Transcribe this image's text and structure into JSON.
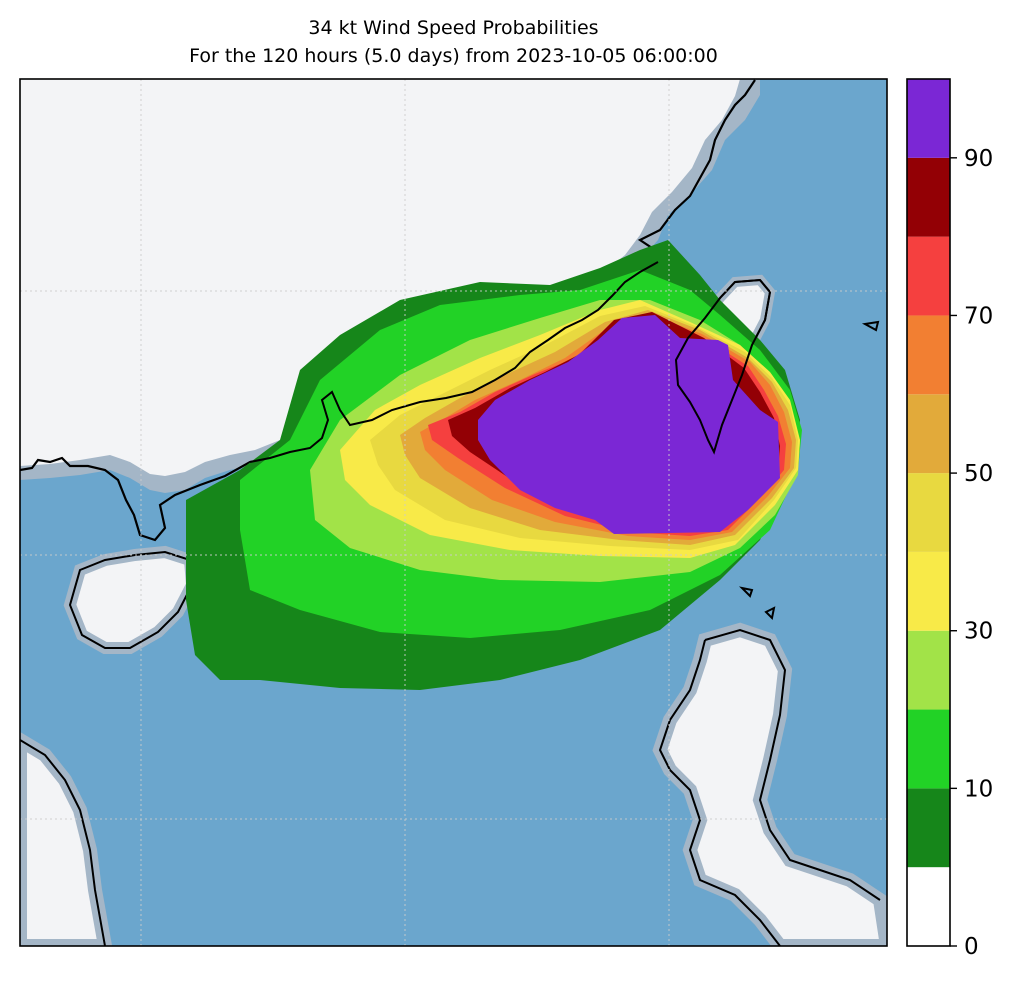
{
  "title": "34 kt Wind Speed Probabilities",
  "subtitle": "For the 120 hours (5.0 days) from 2023-10-05 06:00:00",
  "colorbar": {
    "ticks": [
      "0",
      "10",
      "30",
      "50",
      "70",
      "90"
    ],
    "levels": [
      0,
      5,
      10,
      20,
      30,
      40,
      50,
      60,
      70,
      80,
      90,
      100
    ],
    "colors": [
      "#ffffff",
      "#16861a",
      "#22d226",
      "#a2e348",
      "#f8ea48",
      "#e8d940",
      "#e2aa3a",
      "#f27f32",
      "#f5403f",
      "#930005",
      "#7b27d5"
    ]
  },
  "map_colors": {
    "ocean": "#6ba6cd",
    "land": "#f3f4f6",
    "coast": "#000000"
  }
}
